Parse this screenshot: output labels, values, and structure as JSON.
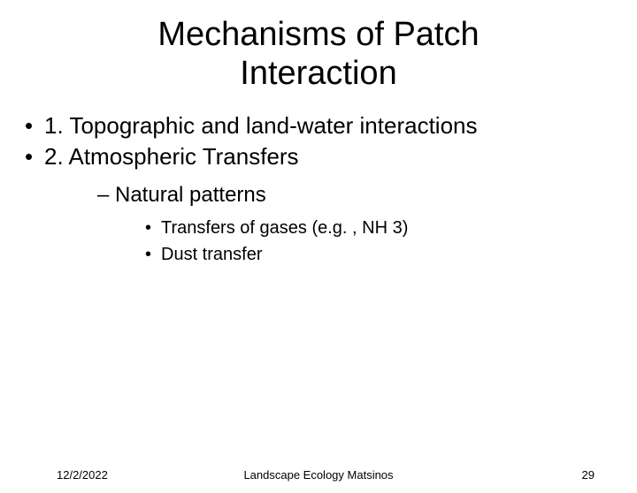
{
  "title_line1": "Mechanisms of Patch",
  "title_line2": "Interaction",
  "bullets": {
    "b1": "1. Topographic and land-water interactions",
    "b2": "2. Atmospheric Transfers",
    "sub1": "Natural patterns",
    "subsub1": "Transfers of gases (e.g. , NH 3)",
    "subsub2": "Dust transfer"
  },
  "footer": {
    "date": "12/2/2022",
    "center": "Landscape Ecology Matsinos",
    "page": "29"
  },
  "colors": {
    "background": "#ffffff",
    "text": "#000000"
  },
  "fontsize": {
    "title": 38,
    "level1": 26,
    "level2": 24,
    "level3": 20,
    "footer": 13
  }
}
